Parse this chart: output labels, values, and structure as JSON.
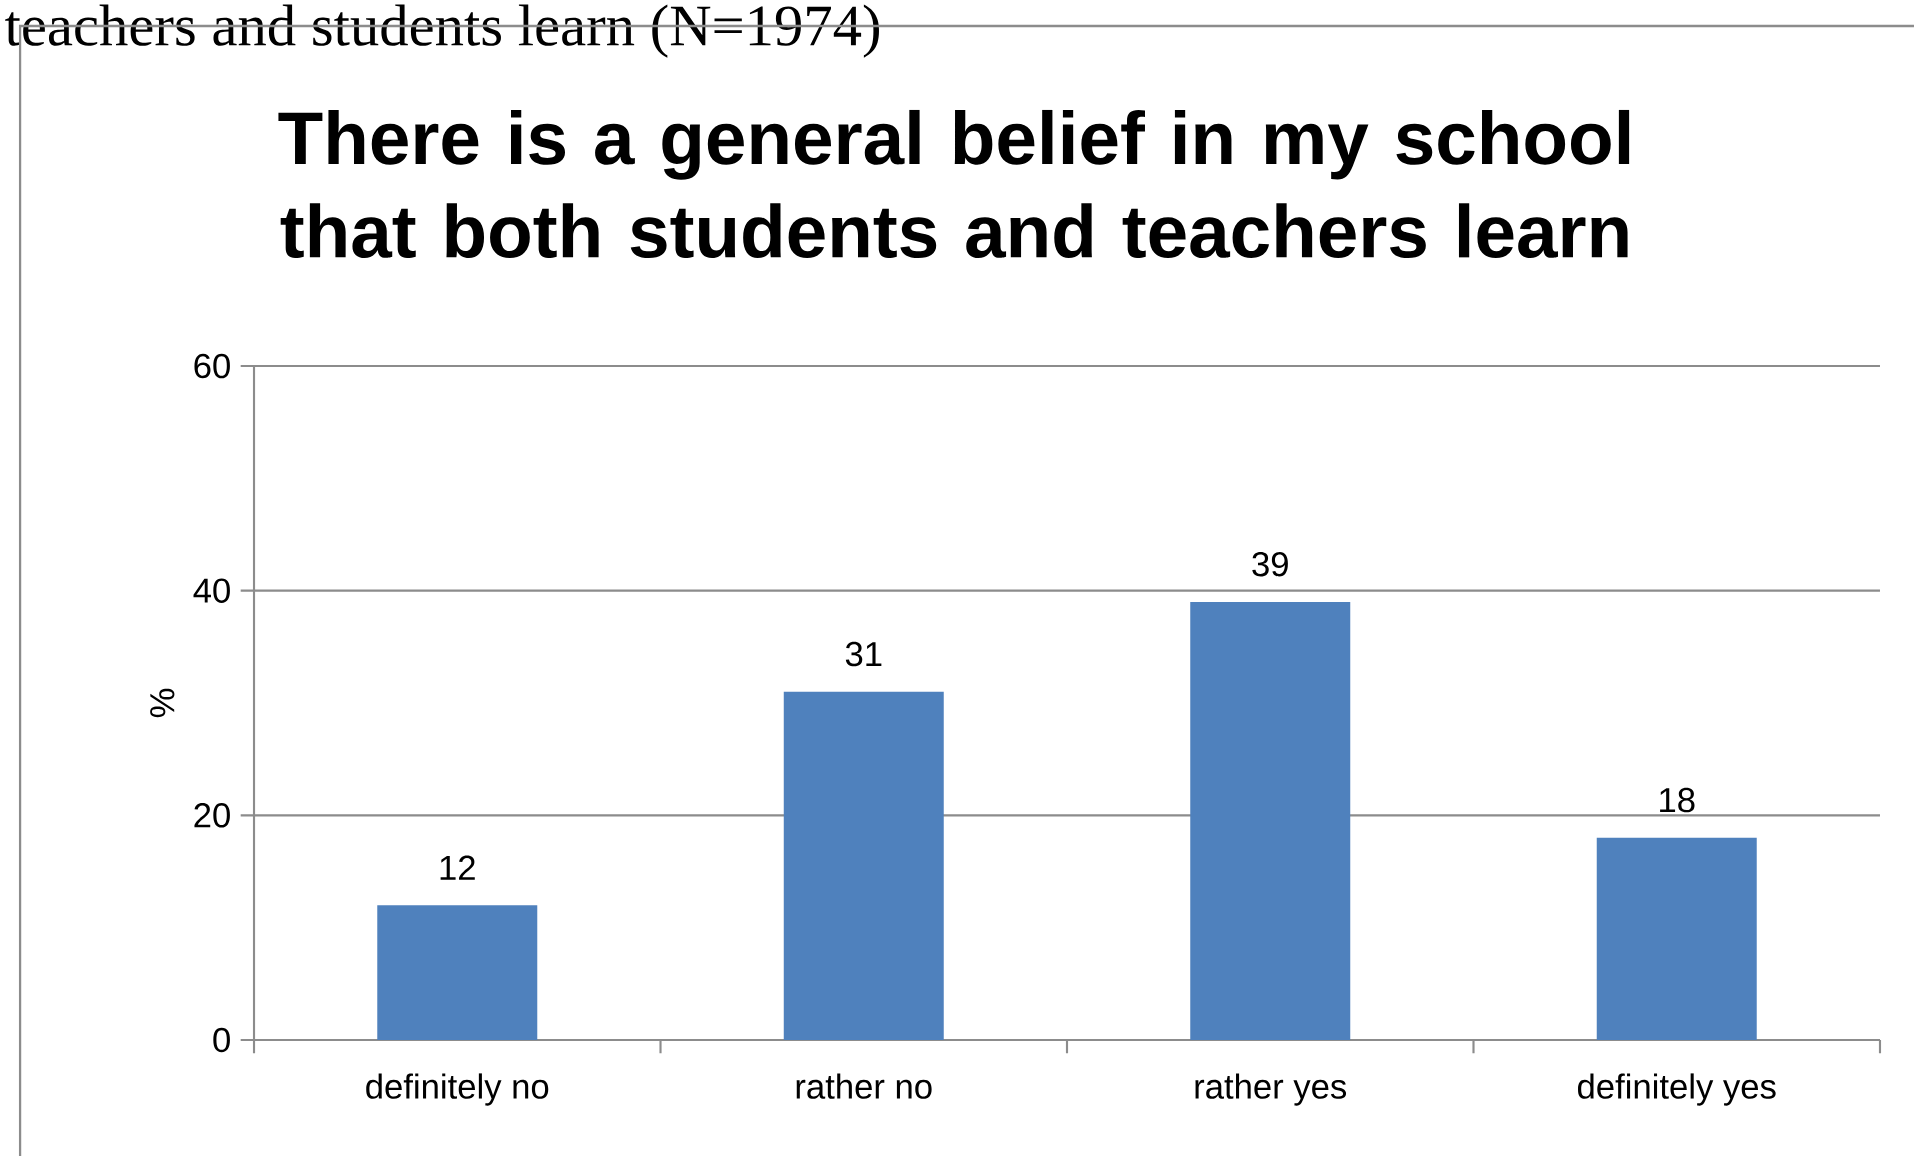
{
  "chart_data": {
    "type": "bar",
    "title": "There is a general belief in my school that both students and teachers learn",
    "ylabel": "%",
    "annotations": [
      "teachers and students learn (N=1974)"
    ],
    "categories": [
      "definitely no",
      "rather no",
      "rather yes",
      "definitely yes"
    ],
    "values": [
      12,
      31,
      39,
      18
    ],
    "color": "#4f81bd",
    "ylim": [
      0,
      60
    ],
    "yticks": [
      0,
      20,
      40,
      60
    ],
    "grid": "y",
    "data_labels": true
  }
}
